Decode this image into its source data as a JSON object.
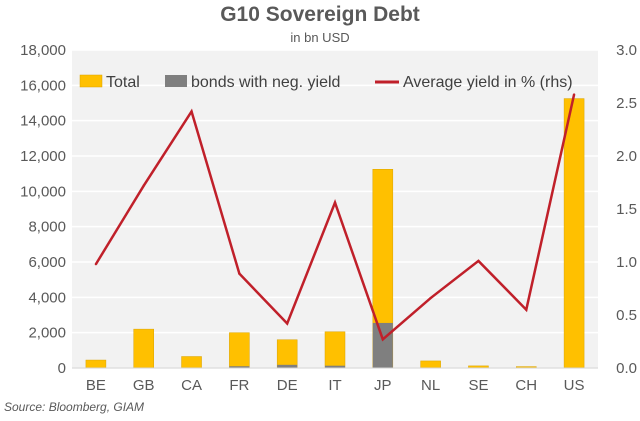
{
  "chart_data": {
    "type": "bar",
    "title": "G10 Sovereign Debt",
    "subtitle": "in bn USD",
    "source": "Source: Bloomberg, GIAM",
    "categories": [
      "BE",
      "GB",
      "CA",
      "FR",
      "DE",
      "IT",
      "JP",
      "NL",
      "SE",
      "CH",
      "US"
    ],
    "series": [
      {
        "name": "Total",
        "kind": "bar",
        "axis": "left",
        "color": "#FFC000",
        "values": [
          450,
          2200,
          650,
          2000,
          1600,
          2050,
          11250,
          400,
          120,
          80,
          15250
        ]
      },
      {
        "name": "bonds with neg. yield",
        "kind": "bar",
        "axis": "left",
        "color": "#7F7F7F",
        "values": [
          0,
          0,
          0,
          100,
          180,
          130,
          2550,
          0,
          0,
          0,
          0
        ]
      },
      {
        "name": "Average yield in % (rhs)",
        "kind": "line",
        "axis": "right",
        "color": "#C0202A",
        "values": [
          0.98,
          1.72,
          2.42,
          0.89,
          0.42,
          1.56,
          0.27,
          0.66,
          1.01,
          0.55,
          2.58
        ]
      }
    ],
    "y_left": {
      "min": 0,
      "max": 18000,
      "ticks": [
        "0",
        "2,000",
        "4,000",
        "6,000",
        "8,000",
        "10,000",
        "12,000",
        "14,000",
        "16,000",
        "18,000"
      ]
    },
    "y_right": {
      "min": 0,
      "max": 3.0,
      "ticks": [
        "0.0",
        "0.5",
        "1.0",
        "1.5",
        "2.0",
        "2.5",
        "3.0"
      ]
    },
    "grid": true,
    "legend_position": "top"
  }
}
